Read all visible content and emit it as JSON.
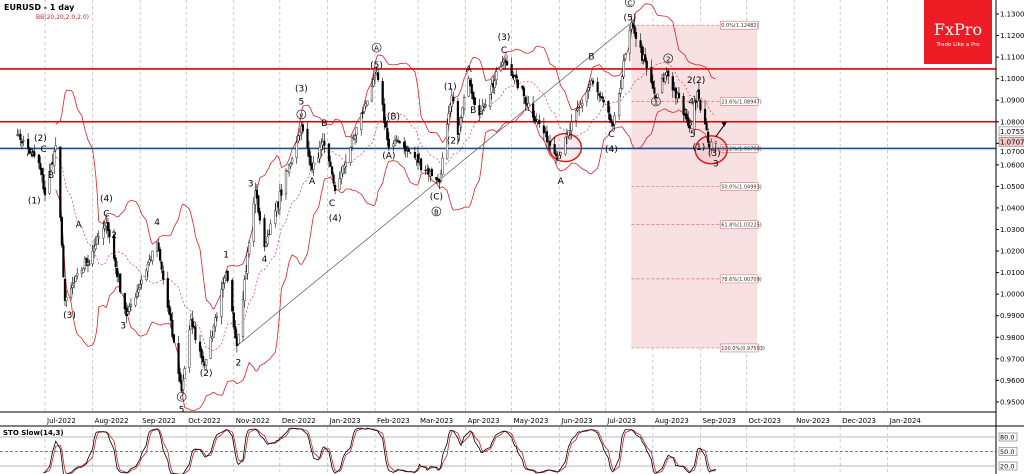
{
  "chart_title": "EURUSD - 1 day",
  "indicator_label": "BB(20,20,2.0,2.0)",
  "logo": {
    "brand": "FxPro",
    "tagline": "Trade Like a Pro",
    "color": "#ed1c24"
  },
  "colors": {
    "candle": "#000000",
    "bands": "#e02020",
    "resistance": "#e00000",
    "support": "#1f4e8c",
    "fib_zone": "#f7e1e3",
    "sto_main": "#000000",
    "sto_signal": "#d02020"
  },
  "chart_data": {
    "type": "candlestick",
    "symbol": "EURUSD",
    "timeframe": "1 day",
    "ylim": [
      0.945,
      1.135
    ],
    "y_ticks": [
      "1.13000",
      "1.12000",
      "1.11000",
      "1.10000",
      "1.09000",
      "1.08000",
      "1.07000",
      "1.06000",
      "1.05000",
      "1.04000",
      "1.03000",
      "1.02000",
      "1.01000",
      "1.00000",
      "0.99000",
      "0.98000",
      "0.97000",
      "0.96000",
      "0.95000"
    ],
    "x_ticks": [
      "Jul-2022",
      "Aug-2022",
      "Sep-2022",
      "Oct-2022",
      "Nov-2022",
      "Dec-2022",
      "Jan-2023",
      "Feb-2023",
      "Mar-2023",
      "Apr-2023",
      "May-2023",
      "Jun-2023",
      "Jul-2023",
      "Aug-2023",
      "Sep-2023",
      "Oct-2023",
      "Nov-2023",
      "Dec-2023",
      "Jan-2024"
    ],
    "price_tags": [
      "1.07553",
      "1.07071"
    ],
    "price_pivots": [
      [
        "2022-06-13",
        1.074
      ],
      [
        "2022-06-27",
        1.061
      ],
      [
        "2022-07-01",
        1.046
      ],
      [
        "2022-07-08",
        1.069
      ],
      [
        "2022-07-14",
        0.997
      ],
      [
        "2022-08-10",
        1.033
      ],
      [
        "2022-08-23",
        0.99
      ],
      [
        "2022-09-12",
        1.024
      ],
      [
        "2022-09-28",
        0.955
      ],
      [
        "2022-10-04",
        0.988
      ],
      [
        "2022-10-13",
        0.967
      ],
      [
        "2022-10-27",
        1.01
      ],
      [
        "2022-11-03",
        0.976
      ],
      [
        "2022-11-15",
        1.048
      ],
      [
        "2022-11-21",
        1.022
      ],
      [
        "2022-12-15",
        1.078
      ],
      [
        "2022-12-22",
        1.058
      ],
      [
        "2022-12-29",
        1.071
      ],
      [
        "2023-01-06",
        1.048
      ],
      [
        "2023-02-02",
        1.103
      ],
      [
        "2023-02-10",
        1.068
      ],
      [
        "2023-02-16",
        1.071
      ],
      [
        "2023-03-15",
        1.052
      ],
      [
        "2023-03-23",
        1.092
      ],
      [
        "2023-03-27",
        1.074
      ],
      [
        "2023-04-03",
        1.1
      ],
      [
        "2023-04-10",
        1.083
      ],
      [
        "2023-04-26",
        1.109
      ],
      [
        "2023-05-31",
        1.063
      ],
      [
        "2023-06-22",
        1.099
      ],
      [
        "2023-07-06",
        1.078
      ],
      [
        "2023-07-18",
        1.126
      ],
      [
        "2023-08-03",
        1.091
      ],
      [
        "2023-08-10",
        1.103
      ],
      [
        "2023-08-25",
        1.077
      ],
      [
        "2023-08-30",
        1.094
      ],
      [
        "2023-09-07",
        1.068
      ],
      [
        "2023-09-11",
        1.0707
      ]
    ],
    "horizontal_levels": [
      {
        "price": 1.1045,
        "role": "resistance"
      },
      {
        "price": 1.08,
        "role": "resistance"
      },
      {
        "price": 1.0676,
        "role": "support"
      }
    ],
    "trendline": [
      [
        "2022-11-03",
        0.976
      ],
      [
        "2023-07-18",
        1.126
      ]
    ],
    "fibonacci": {
      "from_date": "2023-07-18",
      "to_date": "2023-10-08",
      "levels": [
        {
          "label": "0.0%(1.12482)",
          "price": 1.12482
        },
        {
          "label": "23.6%(1.08947)",
          "price": 1.08947
        },
        {
          "label": "38.2%(1.06760)",
          "price": 1.0676
        },
        {
          "label": "50.0%(1.04993)",
          "price": 1.04993
        },
        {
          "label": "61.8%(1.03225)",
          "price": 1.03225
        },
        {
          "label": "78.6%(1.00709)",
          "price": 1.00709
        },
        {
          "label": "100.0%(0.97503)",
          "price": 0.97503
        }
      ]
    },
    "wave_labels": [
      {
        "text": "(2)",
        "date": "2022-06-28",
        "price": 1.071,
        "circle": false
      },
      {
        "text": "A",
        "date": "2022-06-21",
        "price": 1.064,
        "circle": false
      },
      {
        "text": "C",
        "date": "2022-06-30",
        "price": 1.066,
        "circle": false
      },
      {
        "text": "B",
        "date": "2022-07-05",
        "price": 1.054,
        "circle": false
      },
      {
        "text": "(1)",
        "date": "2022-06-24",
        "price": 1.042,
        "circle": false
      },
      {
        "text": "(3)",
        "date": "2022-07-17",
        "price": 0.989,
        "circle": false
      },
      {
        "text": "A",
        "date": "2022-07-23",
        "price": 1.031,
        "circle": false
      },
      {
        "text": "B",
        "date": "2022-07-29",
        "price": 1.013,
        "circle": false
      },
      {
        "text": "(4)",
        "date": "2022-08-10",
        "price": 1.043,
        "circle": false
      },
      {
        "text": "C",
        "date": "2022-08-10",
        "price": 1.036,
        "circle": false
      },
      {
        "text": "2",
        "date": "2022-08-15",
        "price": 1.026,
        "circle": false
      },
      {
        "text": "3",
        "date": "2022-08-21",
        "price": 0.984,
        "circle": false
      },
      {
        "text": "4",
        "date": "2022-09-12",
        "price": 1.032,
        "circle": false
      },
      {
        "text": "5",
        "date": "2022-09-28",
        "price": 0.945,
        "circle": false
      },
      {
        "text": "c",
        "date": "2022-09-28",
        "price": 0.951,
        "circle": true
      },
      {
        "text": "(2)",
        "date": "2022-10-14",
        "price": 0.962,
        "circle": false
      },
      {
        "text": "1",
        "date": "2022-10-27",
        "price": 1.017,
        "circle": false
      },
      {
        "text": "2",
        "date": "2022-11-04",
        "price": 0.967,
        "circle": false
      },
      {
        "text": "3",
        "date": "2022-11-12",
        "price": 1.05,
        "circle": false
      },
      {
        "text": "4",
        "date": "2022-11-21",
        "price": 1.015,
        "circle": false
      },
      {
        "text": "(3)",
        "date": "2022-12-15",
        "price": 1.094,
        "circle": false
      },
      {
        "text": "5",
        "date": "2022-12-15",
        "price": 1.088,
        "circle": false
      },
      {
        "text": "v",
        "date": "2022-12-15",
        "price": 1.082,
        "circle": true
      },
      {
        "text": "A",
        "date": "2022-12-22",
        "price": 1.051,
        "circle": false
      },
      {
        "text": "B",
        "date": "2022-12-30",
        "price": 1.078,
        "circle": false
      },
      {
        "text": "C",
        "date": "2023-01-04",
        "price": 1.041,
        "circle": false
      },
      {
        "text": "(4)",
        "date": "2023-01-06",
        "price": 1.034,
        "circle": false
      },
      {
        "text": "A",
        "date": "2023-02-02",
        "price": 1.113,
        "circle": true
      },
      {
        "text": "(5)",
        "date": "2023-02-02",
        "price": 1.105,
        "circle": false
      },
      {
        "text": "(B)",
        "date": "2023-02-13",
        "price": 1.081,
        "circle": false
      },
      {
        "text": "(A)",
        "date": "2023-02-10",
        "price": 1.063,
        "circle": false
      },
      {
        "text": "(C)",
        "date": "2023-03-13",
        "price": 1.044,
        "circle": false
      },
      {
        "text": "B",
        "date": "2023-03-13",
        "price": 1.037,
        "circle": true
      },
      {
        "text": "(1)",
        "date": "2023-03-22",
        "price": 1.095,
        "circle": false
      },
      {
        "text": "(2)",
        "date": "2023-03-24",
        "price": 1.07,
        "circle": false
      },
      {
        "text": "A",
        "date": "2023-04-03",
        "price": 1.103,
        "circle": false
      },
      {
        "text": "B",
        "date": "2023-04-06",
        "price": 1.084,
        "circle": false
      },
      {
        "text": "(3)",
        "date": "2023-04-26",
        "price": 1.118,
        "circle": false
      },
      {
        "text": "C",
        "date": "2023-04-26",
        "price": 1.112,
        "circle": false
      },
      {
        "text": "A",
        "date": "2023-06-02",
        "price": 1.051,
        "circle": false
      },
      {
        "text": "B",
        "date": "2023-06-22",
        "price": 1.109,
        "circle": false
      },
      {
        "text": "C",
        "date": "2023-07-05",
        "price": 1.073,
        "circle": false
      },
      {
        "text": "(4)",
        "date": "2023-07-05",
        "price": 1.066,
        "circle": false
      },
      {
        "text": "C",
        "date": "2023-07-17",
        "price": 1.134,
        "circle": true
      },
      {
        "text": "(5)",
        "date": "2023-07-17",
        "price": 1.127,
        "circle": false
      },
      {
        "text": "1",
        "date": "2023-08-03",
        "price": 1.088,
        "circle": true
      },
      {
        "text": "2",
        "date": "2023-08-11",
        "price": 1.108,
        "circle": true
      },
      {
        "text": "2",
        "date": "2023-08-25",
        "price": 1.098,
        "circle": false
      },
      {
        "text": "(2)",
        "date": "2023-08-31",
        "price": 1.098,
        "circle": false
      },
      {
        "text": "4",
        "date": "2023-08-26",
        "price": 1.088,
        "circle": false
      },
      {
        "text": "1",
        "date": "2023-08-23",
        "price": 1.083,
        "circle": false
      },
      {
        "text": "3",
        "date": "2023-08-25",
        "price": 1.078,
        "circle": false
      },
      {
        "text": "5",
        "date": "2023-08-27",
        "price": 1.073,
        "circle": false
      },
      {
        "text": "(1)",
        "date": "2023-08-31",
        "price": 1.067,
        "circle": false
      },
      {
        "text": "(3)",
        "date": "2023-09-10",
        "price": 1.064,
        "circle": false
      },
      {
        "text": "3",
        "date": "2023-09-11",
        "price": 1.061,
        "circle": false
      }
    ],
    "highlight_circles": [
      [
        "2023-06-05",
        1.068
      ],
      [
        "2023-09-08",
        1.067
      ]
    ],
    "projection_arrow": [
      [
        "2023-09-11",
        1.073
      ],
      [
        "2023-09-18",
        1.08
      ]
    ]
  },
  "stochastic": {
    "label": "STO Slow(14,3)",
    "levels": [
      "80.0",
      "50.0",
      "20.0"
    ],
    "level_values": [
      80,
      50,
      20
    ]
  }
}
